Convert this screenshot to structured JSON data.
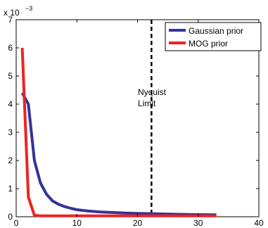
{
  "chart_data": {
    "type": "line",
    "xlim": [
      0,
      40
    ],
    "ylim": [
      0,
      0.007
    ],
    "x_ticks": [
      0,
      10,
      20,
      30,
      40
    ],
    "y_ticks": [
      0,
      1,
      2,
      3,
      4,
      5,
      6,
      7
    ],
    "y_tick_labels": [
      "0",
      "1",
      "2",
      "3",
      "4",
      "5",
      "6",
      "7"
    ],
    "y_exponent_label": "x 10",
    "y_exponent_power": "−3",
    "grid": false,
    "legend_position": "top-right",
    "series": [
      {
        "name": "Gaussian prior",
        "color": "#333399",
        "x": [
          1,
          2,
          3,
          4,
          5,
          6,
          7,
          8,
          9,
          10,
          12,
          14,
          16,
          18,
          20,
          22,
          24,
          26,
          28,
          30,
          33
        ],
        "y": [
          0.0044,
          0.004,
          0.002,
          0.0012,
          0.0008,
          0.00056,
          0.00044,
          0.00036,
          0.0003,
          0.00025,
          0.0002,
          0.00017,
          0.00015,
          0.00013,
          0.00012,
          0.00011,
          0.0001,
          9e-05,
          8e-05,
          7.5e-05,
          7e-05
        ]
      },
      {
        "name": "MOG prior",
        "color": "#ee2222",
        "x": [
          1,
          2,
          3,
          4,
          6,
          10,
          15,
          20,
          25,
          30,
          33
        ],
        "y": [
          0.006,
          0.0007,
          5e-05,
          3e-05,
          3e-05,
          3e-05,
          3e-05,
          3e-05,
          3e-05,
          3e-05,
          3e-05
        ]
      }
    ],
    "annotations": [
      {
        "type": "vline",
        "x": 22.3,
        "style": "dashed",
        "color": "#000000"
      },
      {
        "type": "text",
        "lines": [
          "Nyquist",
          "Limit"
        ]
      }
    ]
  }
}
